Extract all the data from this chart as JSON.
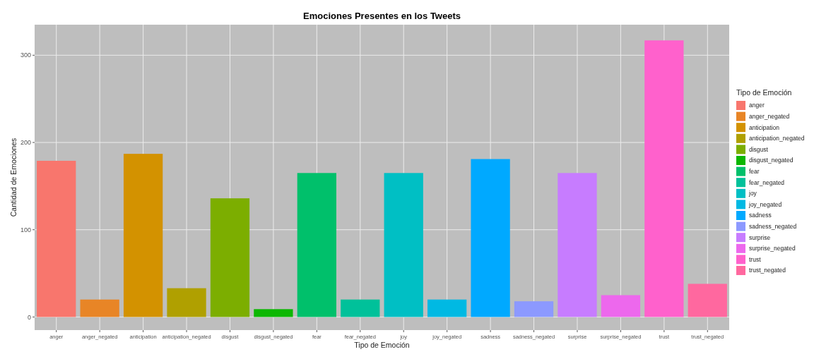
{
  "chart_data": {
    "type": "bar",
    "title": "Emociones Presentes en los Tweets",
    "xlabel": "Tipo de Emoción",
    "ylabel": "Cantidad de Emociones",
    "legend_title": "Tipo de Emoción",
    "categories": [
      "anger",
      "anger_negated",
      "anticipation",
      "anticipation_negated",
      "disgust",
      "disgust_negated",
      "fear",
      "fear_negated",
      "joy",
      "joy_negated",
      "sadness",
      "sadness_negated",
      "surprise",
      "surprise_negated",
      "trust",
      "trust_negated"
    ],
    "series": [
      {
        "name": "anger",
        "color": "#f8766d",
        "values": [
          179,
          null,
          null,
          null,
          null,
          null,
          null,
          null,
          null,
          null,
          null,
          null,
          null,
          null,
          null,
          null
        ]
      },
      {
        "name": "anger_negated",
        "color": "#e88526",
        "values": [
          null,
          20,
          null,
          null,
          null,
          null,
          null,
          null,
          null,
          null,
          null,
          null,
          null,
          null,
          null,
          null
        ]
      },
      {
        "name": "anticipation",
        "color": "#d39200",
        "values": [
          null,
          null,
          187,
          null,
          null,
          null,
          null,
          null,
          null,
          null,
          null,
          null,
          null,
          null,
          null,
          null
        ]
      },
      {
        "name": "anticipation_negated",
        "color": "#b0a000",
        "values": [
          null,
          null,
          null,
          33,
          null,
          null,
          null,
          null,
          null,
          null,
          null,
          null,
          null,
          null,
          null,
          null
        ]
      },
      {
        "name": "disgust",
        "color": "#7cae00",
        "values": [
          null,
          null,
          null,
          null,
          136,
          null,
          null,
          null,
          null,
          null,
          null,
          null,
          null,
          null,
          null,
          null
        ]
      },
      {
        "name": "disgust_negated",
        "color": "#0cb702",
        "values": [
          null,
          null,
          null,
          null,
          null,
          9,
          null,
          null,
          null,
          null,
          null,
          null,
          null,
          null,
          null,
          null
        ]
      },
      {
        "name": "fear",
        "color": "#00c06b",
        "values": [
          null,
          null,
          null,
          null,
          null,
          null,
          165,
          null,
          null,
          null,
          null,
          null,
          null,
          null,
          null,
          null
        ]
      },
      {
        "name": "fear_negated",
        "color": "#00c19a",
        "values": [
          null,
          null,
          null,
          null,
          null,
          null,
          null,
          20,
          null,
          null,
          null,
          null,
          null,
          null,
          null,
          null
        ]
      },
      {
        "name": "joy",
        "color": "#00bfc4",
        "values": [
          null,
          null,
          null,
          null,
          null,
          null,
          null,
          null,
          165,
          null,
          null,
          null,
          null,
          null,
          null,
          null
        ]
      },
      {
        "name": "joy_negated",
        "color": "#00b9e3",
        "values": [
          null,
          null,
          null,
          null,
          null,
          null,
          null,
          null,
          null,
          20,
          null,
          null,
          null,
          null,
          null,
          null
        ]
      },
      {
        "name": "sadness",
        "color": "#00a9ff",
        "values": [
          null,
          null,
          null,
          null,
          null,
          null,
          null,
          null,
          null,
          null,
          181,
          null,
          null,
          null,
          null,
          null
        ]
      },
      {
        "name": "sadness_negated",
        "color": "#8c99ff",
        "values": [
          null,
          null,
          null,
          null,
          null,
          null,
          null,
          null,
          null,
          null,
          null,
          18,
          null,
          null,
          null,
          null
        ]
      },
      {
        "name": "surprise",
        "color": "#c77cff",
        "values": [
          null,
          null,
          null,
          null,
          null,
          null,
          null,
          null,
          null,
          null,
          null,
          null,
          165,
          null,
          null,
          null
        ]
      },
      {
        "name": "surprise_negated",
        "color": "#ed68ed",
        "values": [
          null,
          null,
          null,
          null,
          null,
          null,
          null,
          null,
          null,
          null,
          null,
          null,
          null,
          25,
          null,
          null
        ]
      },
      {
        "name": "trust",
        "color": "#ff61cc",
        "values": [
          null,
          null,
          null,
          null,
          null,
          null,
          null,
          null,
          null,
          null,
          null,
          null,
          null,
          null,
          317,
          null
        ]
      },
      {
        "name": "trust_negated",
        "color": "#ff689f",
        "values": [
          null,
          null,
          null,
          null,
          null,
          null,
          null,
          null,
          null,
          null,
          null,
          null,
          null,
          null,
          null,
          38
        ]
      }
    ],
    "ylim": [
      -15,
      335
    ],
    "yticks": [
      0,
      100,
      200,
      300
    ],
    "grid": true,
    "legend": "right"
  }
}
